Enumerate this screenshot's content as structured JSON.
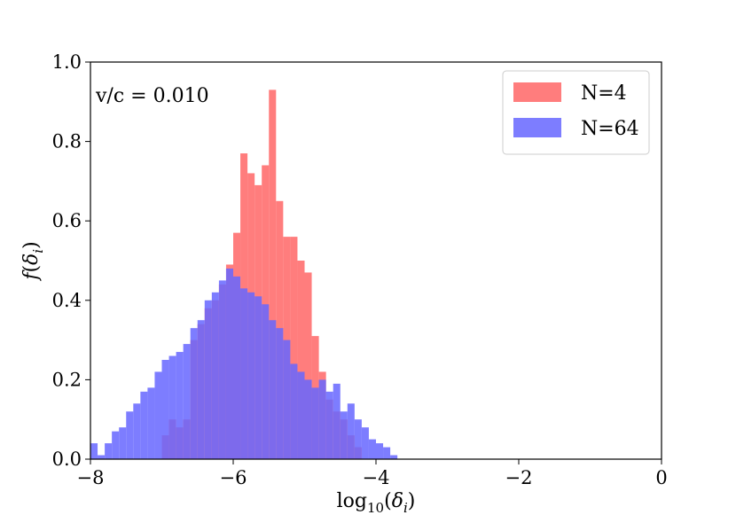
{
  "chart_data": {
    "type": "histogram",
    "xlabel": "log10(δi)",
    "ylabel": "f(δi)",
    "xlim": [
      -8,
      0
    ],
    "ylim": [
      0,
      1.0
    ],
    "xticks": [
      -8,
      -6,
      -4,
      -2,
      0
    ],
    "xtick_labels": [
      "−8",
      "−6",
      "−4",
      "−2",
      "0"
    ],
    "yticks": [
      0,
      0.2,
      0.4,
      0.6,
      0.8,
      1.0
    ],
    "ytick_labels": [
      "0.0",
      "0.2",
      "0.4",
      "0.6",
      "0.8",
      "1.0"
    ],
    "annotation": "v/c = 0.010",
    "legend_position": "top-right",
    "bin_width": 0.1,
    "series": [
      {
        "name": "N=4",
        "color": "#ff6666",
        "bins": [
          [
            -7.0,
            0.06
          ],
          [
            -6.9,
            0.1
          ],
          [
            -6.8,
            0.08
          ],
          [
            -6.7,
            0.1
          ],
          [
            -6.6,
            0.3
          ],
          [
            -6.5,
            0.34
          ],
          [
            -6.4,
            0.38
          ],
          [
            -6.3,
            0.4
          ],
          [
            -6.2,
            0.44
          ],
          [
            -6.1,
            0.49
          ],
          [
            -6.0,
            0.57
          ],
          [
            -5.9,
            0.77
          ],
          [
            -5.8,
            0.72
          ],
          [
            -5.7,
            0.69
          ],
          [
            -5.6,
            0.74
          ],
          [
            -5.5,
            0.93
          ],
          [
            -5.4,
            0.65
          ],
          [
            -5.3,
            0.56
          ],
          [
            -5.2,
            0.56
          ],
          [
            -5.1,
            0.5
          ],
          [
            -5.0,
            0.47
          ],
          [
            -4.9,
            0.31
          ],
          [
            -4.8,
            0.22
          ],
          [
            -4.7,
            0.15
          ],
          [
            -4.6,
            0.12
          ],
          [
            -4.5,
            0.1
          ],
          [
            -4.4,
            0.06
          ],
          [
            -4.3,
            0.03
          ]
        ]
      },
      {
        "name": "N=64",
        "color": "#6666ff",
        "bins": [
          [
            -8.0,
            0.04
          ],
          [
            -7.9,
            0.01
          ],
          [
            -7.8,
            0.04
          ],
          [
            -7.7,
            0.07
          ],
          [
            -7.6,
            0.08
          ],
          [
            -7.5,
            0.12
          ],
          [
            -7.4,
            0.14
          ],
          [
            -7.3,
            0.17
          ],
          [
            -7.2,
            0.18
          ],
          [
            -7.1,
            0.22
          ],
          [
            -7.0,
            0.25
          ],
          [
            -6.9,
            0.26
          ],
          [
            -6.8,
            0.27
          ],
          [
            -6.7,
            0.29
          ],
          [
            -6.6,
            0.33
          ],
          [
            -6.5,
            0.35
          ],
          [
            -6.4,
            0.4
          ],
          [
            -6.3,
            0.42
          ],
          [
            -6.2,
            0.45
          ],
          [
            -6.1,
            0.48
          ],
          [
            -6.0,
            0.46
          ],
          [
            -5.9,
            0.43
          ],
          [
            -5.8,
            0.42
          ],
          [
            -5.7,
            0.41
          ],
          [
            -5.6,
            0.39
          ],
          [
            -5.5,
            0.35
          ],
          [
            -5.4,
            0.33
          ],
          [
            -5.3,
            0.3
          ],
          [
            -5.2,
            0.24
          ],
          [
            -5.1,
            0.22
          ],
          [
            -5.0,
            0.2
          ],
          [
            -4.9,
            0.18
          ],
          [
            -4.8,
            0.2
          ],
          [
            -4.7,
            0.17
          ],
          [
            -4.6,
            0.19
          ],
          [
            -4.5,
            0.12
          ],
          [
            -4.4,
            0.14
          ],
          [
            -4.3,
            0.1
          ],
          [
            -4.2,
            0.08
          ],
          [
            -4.1,
            0.05
          ],
          [
            -4.0,
            0.04
          ],
          [
            -3.9,
            0.03
          ],
          [
            -3.8,
            0.01
          ]
        ]
      }
    ]
  }
}
